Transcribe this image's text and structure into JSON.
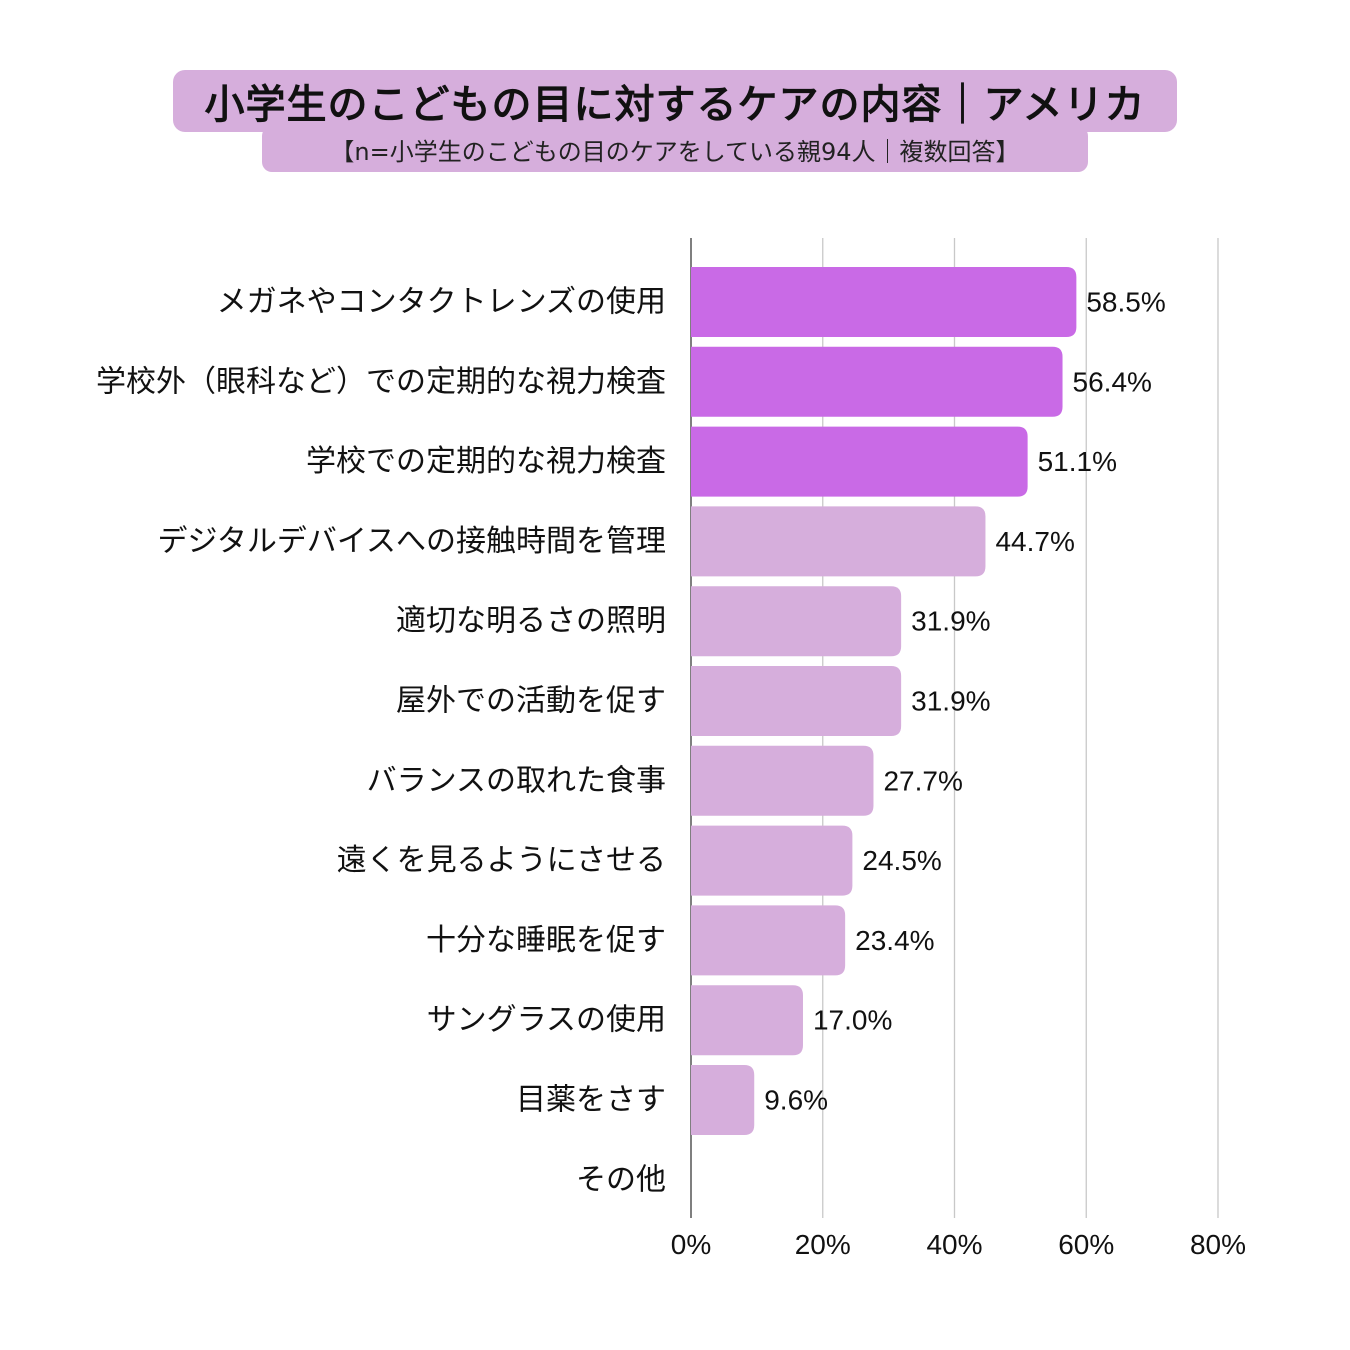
{
  "title": "小学生のこどもの目に対するケアの内容｜アメリカ",
  "subtitle": "【n=小学生のこどもの目のケアをしている親94人｜複数回答】",
  "colors": {
    "highlight": "#c96ae6",
    "normal": "#d6aedc",
    "grid": "#c8c8c8",
    "axis": "#555555",
    "title_bg": "#d6aedc"
  },
  "chart_data": {
    "type": "bar",
    "orientation": "horizontal",
    "title": "小学生のこどもの目に対するケアの内容｜アメリカ",
    "subtitle": "【n=小学生のこどもの目のケアをしている親94人｜複数回答】",
    "categories": [
      "メガネやコンタクトレンズの使用",
      "学校外（眼科など）での定期的な視力検査",
      "学校での定期的な視力検査",
      "デジタルデバイスへの接触時間を管理",
      "適切な明るさの照明",
      "屋外での活動を促す",
      "バランスの取れた食事",
      "遠くを見るようにさせる",
      "十分な睡眠を促す",
      "サングラスの使用",
      "目薬をさす",
      "その他"
    ],
    "values": [
      58.5,
      56.4,
      51.1,
      44.7,
      31.9,
      31.9,
      27.7,
      24.5,
      23.4,
      17.0,
      9.6,
      0
    ],
    "value_labels": [
      "58.5%",
      "56.4%",
      "51.1%",
      "44.7%",
      "31.9%",
      "31.9%",
      "27.7%",
      "24.5%",
      "23.4%",
      "17.0%",
      "9.6%",
      ""
    ],
    "highlighted_top": 3,
    "xlim": [
      0,
      80
    ],
    "xticks": [
      0,
      20,
      40,
      60,
      80
    ],
    "xtick_labels": [
      "0%",
      "20%",
      "40%",
      "60%",
      "80%"
    ],
    "xlabel": "",
    "ylabel": "",
    "grid": true
  }
}
